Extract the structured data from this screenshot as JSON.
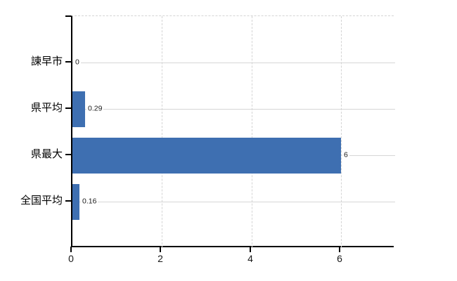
{
  "chart_data": {
    "type": "bar",
    "orientation": "horizontal",
    "title": "",
    "xlabel": "",
    "ylabel": "",
    "categories": [
      "諫早市",
      "県平均",
      "県最大",
      "全国平均"
    ],
    "values": [
      0,
      0.29,
      6,
      0.16
    ],
    "value_labels": [
      "0",
      "0.29",
      "6",
      "0.16"
    ],
    "x_ticks": [
      0,
      2,
      4,
      6
    ],
    "x_tick_labels": [
      "0",
      "2",
      "4",
      "6"
    ],
    "xlim": [
      0,
      7.2
    ],
    "legend": "none",
    "grid": {
      "horizontal_lines": "solid, one per category row center",
      "vertical_lines": "dashed, at x tick positions",
      "top_border": "dashed"
    },
    "colors": {
      "bar": "#3e6fb1",
      "grid": "#d6d6d6",
      "axis": "#000000",
      "text": "#000000",
      "background": "#ffffff"
    }
  }
}
